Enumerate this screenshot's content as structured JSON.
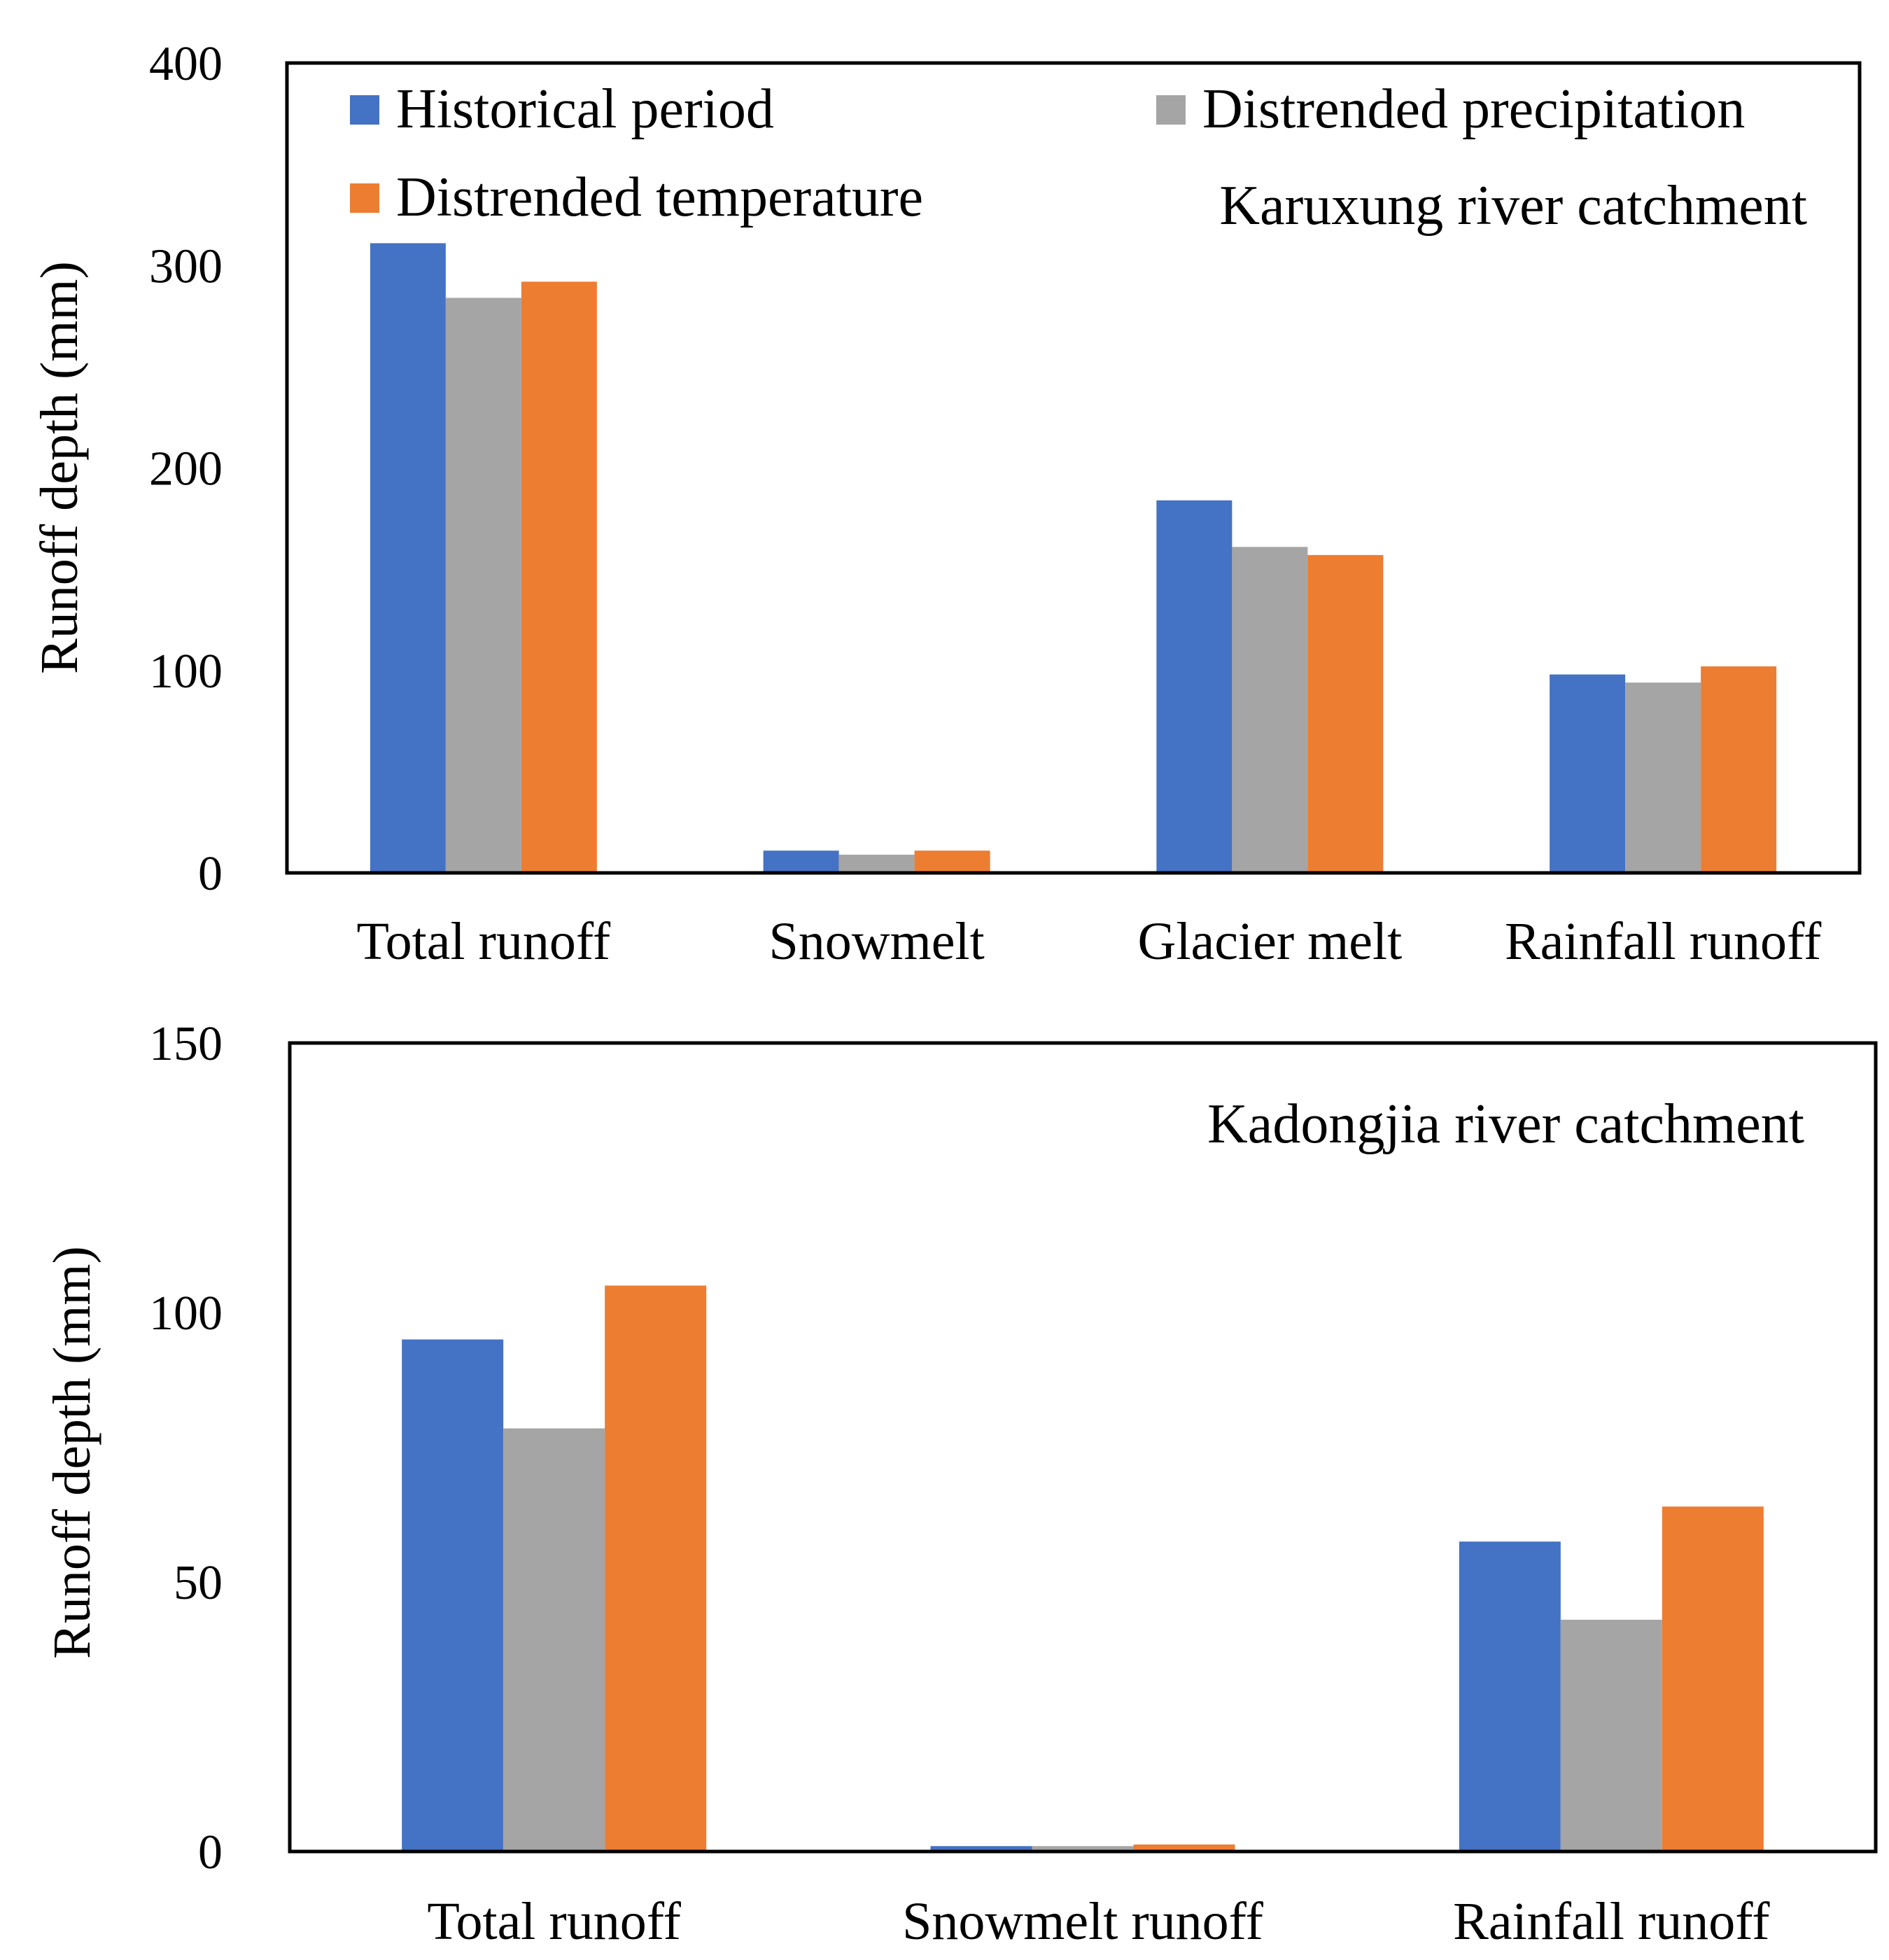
{
  "chart_data": [
    {
      "type": "bar",
      "title": "",
      "annotation": "Karuxung river catchment",
      "xlabel": "",
      "ylabel": "Runoff depth (mm)",
      "ylim": [
        0,
        400
      ],
      "yticks": [
        "0",
        "100",
        "200",
        "300",
        "400"
      ],
      "grid": false,
      "legend_position": "top",
      "categories": [
        "Total runoff",
        "Snowmelt",
        "Glacier melt",
        "Rainfall runoff"
      ],
      "series": [
        {
          "name": "Historical period",
          "color": "#4472C4",
          "values": [
            311,
            11,
            184,
            98
          ]
        },
        {
          "name": "Distrended precipitation",
          "color": "#A5A5A5",
          "values": [
            284,
            9,
            161,
            94
          ]
        },
        {
          "name": "Distrended temperature",
          "color": "#ED7D31",
          "values": [
            292,
            11,
            157,
            102
          ]
        }
      ]
    },
    {
      "type": "bar",
      "title": "",
      "annotation": "Kadongjia river catchment",
      "xlabel": "",
      "ylabel": "Runoff depth (mm)",
      "ylim": [
        0,
        150
      ],
      "yticks": [
        "0",
        "50",
        "100",
        "150"
      ],
      "grid": false,
      "legend_position": "none",
      "categories": [
        "Total runoff",
        "Snowmelt runoff",
        "Rainfall runoff"
      ],
      "series": [
        {
          "name": "Historical period",
          "color": "#4472C4",
          "values": [
            95,
            1,
            57.5
          ]
        },
        {
          "name": "Distrended precipitation",
          "color": "#A5A5A5",
          "values": [
            78.5,
            1,
            43
          ]
        },
        {
          "name": "Distrended temperature",
          "color": "#ED7D31",
          "values": [
            105,
            1.3,
            64
          ]
        }
      ]
    }
  ]
}
